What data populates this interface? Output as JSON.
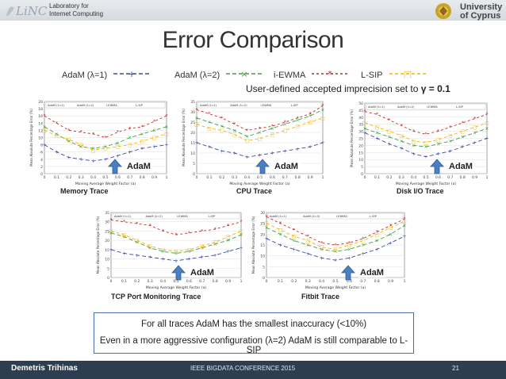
{
  "header": {
    "lab_line1": "Laboratory for",
    "lab_line2": "Internet Computing",
    "logo_text": "LiNC",
    "uni_line1": "University",
    "uni_line2": "of Cyprus"
  },
  "title": "Error Comparison",
  "legend": [
    {
      "label": "AdaM (λ=1)",
      "color": "#3949ab"
    },
    {
      "label": "AdaM (λ=2)",
      "color": "#43a047"
    },
    {
      "label": "i-EWMA",
      "color": "#c62828"
    },
    {
      "label": "L-SIP",
      "color": "#f4b400"
    }
  ],
  "subtitle_prefix": "User-defined accepted imprecision set to ",
  "subtitle_value": "γ = 0.1",
  "charts": [
    {
      "label": "Memory Trace",
      "adam": "AdaM"
    },
    {
      "label": "CPU Trace",
      "adam": "AdaM"
    },
    {
      "label": "Disk I/O Trace",
      "adam": "AdaM"
    },
    {
      "label": "TCP Port Monitoring Trace",
      "adam": "AdaM"
    },
    {
      "label": "Fitbit Trace",
      "adam": "AdaM"
    }
  ],
  "chart_data": [
    {
      "type": "line",
      "title": "Memory Trace",
      "xlabel": "Moving Average Weight Factor (a)",
      "ylabel": "Mean Absolute Percentage Error (%)",
      "ylim": [
        0,
        20
      ],
      "yticks": [
        0,
        2,
        4,
        6,
        8,
        10,
        12,
        14,
        16,
        18,
        20
      ],
      "x": [
        0,
        0.1,
        0.2,
        0.3,
        0.4,
        0.5,
        0.6,
        0.7,
        0.8,
        0.9,
        1
      ],
      "xticks": [
        0,
        0.1,
        0.2,
        0.3,
        0.4,
        0.5,
        0.6,
        0.7,
        0.8,
        0.9,
        1
      ],
      "series": [
        {
          "name": "AdaM (λ=1)",
          "values": [
            8,
            6,
            4.5,
            4,
            3.5,
            4,
            5,
            6,
            7,
            7.5,
            8
          ]
        },
        {
          "name": "AdaM (λ=2)",
          "values": [
            13,
            11,
            9,
            7.5,
            7,
            7.5,
            8.5,
            10,
            11,
            12,
            13
          ]
        },
        {
          "name": "i-EWMA",
          "values": [
            16,
            14,
            12,
            11.5,
            11,
            10,
            11.5,
            12.5,
            13,
            14.5,
            16
          ]
        },
        {
          "name": "L-SIP",
          "values": [
            12,
            10.5,
            9.5,
            8,
            6.5,
            7,
            7.5,
            8,
            9,
            10,
            11
          ]
        }
      ]
    },
    {
      "type": "line",
      "title": "CPU Trace",
      "xlabel": "Moving Average Weight Factor (a)",
      "ylabel": "Mean Absolute Percentage Error (%)",
      "ylim": [
        0,
        35
      ],
      "yticks": [
        0,
        5,
        10,
        15,
        20,
        25,
        30,
        35
      ],
      "x": [
        0,
        0.1,
        0.2,
        0.3,
        0.4,
        0.5,
        0.6,
        0.7,
        0.8,
        0.9,
        1
      ],
      "xticks": [
        0,
        0.1,
        0.2,
        0.3,
        0.4,
        0.5,
        0.6,
        0.7,
        0.8,
        0.9,
        1
      ],
      "series": [
        {
          "name": "AdaM (λ=1)",
          "values": [
            15,
            13,
            11,
            10,
            8,
            9,
            10,
            11,
            12,
            13,
            15
          ]
        },
        {
          "name": "AdaM (λ=2)",
          "values": [
            27,
            25,
            23,
            21,
            18,
            20,
            22,
            24,
            26,
            28,
            31
          ]
        },
        {
          "name": "i-EWMA",
          "values": [
            31,
            29,
            27,
            24,
            21,
            22,
            23,
            25,
            27,
            29,
            33
          ]
        },
        {
          "name": "L-SIP",
          "values": [
            24,
            22,
            21,
            19,
            16,
            17,
            19,
            21,
            23,
            25,
            27
          ]
        }
      ]
    },
    {
      "type": "line",
      "title": "Disk I/O Trace",
      "xlabel": "Moving Average Weight Factor (a)",
      "ylabel": "Mean Absolute Percentage Error (%)",
      "ylim": [
        0,
        50
      ],
      "yticks": [
        0,
        5,
        10,
        15,
        20,
        25,
        30,
        35,
        40,
        45,
        50
      ],
      "x": [
        0,
        0.1,
        0.2,
        0.3,
        0.4,
        0.5,
        0.6,
        0.7,
        0.8,
        0.9,
        1
      ],
      "xticks": [
        0,
        0.1,
        0.2,
        0.3,
        0.4,
        0.5,
        0.6,
        0.7,
        0.8,
        0.9,
        1
      ],
      "series": [
        {
          "name": "AdaM (λ=1)",
          "values": [
            29,
            25,
            21,
            18,
            14,
            12,
            14,
            16,
            19,
            22,
            25
          ]
        },
        {
          "name": "AdaM (λ=2)",
          "values": [
            32,
            29,
            26,
            23,
            20,
            19,
            21,
            23,
            26,
            29,
            32
          ]
        },
        {
          "name": "i-EWMA",
          "values": [
            44,
            42,
            38,
            34,
            30,
            28,
            30,
            33,
            36,
            39,
            42
          ]
        },
        {
          "name": "L-SIP",
          "values": [
            36,
            33,
            30,
            27,
            23,
            22,
            24,
            27,
            30,
            33,
            36
          ]
        }
      ]
    },
    {
      "type": "line",
      "title": "TCP Port Monitoring Trace",
      "xlabel": "Moving Average Weight Factor (a)",
      "ylabel": "Mean Absolute Percentage Error (%)",
      "ylim": [
        0,
        35
      ],
      "yticks": [
        0,
        5,
        10,
        15,
        20,
        25,
        30,
        35
      ],
      "x": [
        0,
        0.1,
        0.2,
        0.3,
        0.4,
        0.5,
        0.6,
        0.7,
        0.8,
        0.9,
        1
      ],
      "xticks": [
        0,
        0.1,
        0.2,
        0.3,
        0.4,
        0.5,
        0.6,
        0.7,
        0.8,
        0.9,
        1
      ],
      "series": [
        {
          "name": "AdaM (λ=1)",
          "values": [
            15,
            13,
            12,
            11,
            10,
            9,
            10,
            11,
            12,
            14,
            16
          ]
        },
        {
          "name": "AdaM (λ=2)",
          "values": [
            24,
            22,
            19,
            16,
            14,
            13,
            14,
            16,
            18,
            20,
            23
          ]
        },
        {
          "name": "i-EWMA",
          "values": [
            31,
            30,
            29,
            28,
            25,
            23,
            24,
            25,
            26,
            28,
            30
          ]
        },
        {
          "name": "L-SIP",
          "values": [
            25,
            23,
            20,
            17,
            15,
            14,
            15,
            17,
            19,
            22,
            25
          ]
        }
      ]
    },
    {
      "type": "line",
      "title": "Fitbit Trace",
      "xlabel": "Moving Average Weight Factor (a)",
      "ylabel": "Mean Absolute Percentage Error (%)",
      "ylim": [
        0,
        30
      ],
      "yticks": [
        0,
        5,
        10,
        15,
        20,
        25,
        30
      ],
      "x": [
        0,
        0.1,
        0.2,
        0.3,
        0.4,
        0.5,
        0.6,
        0.7,
        0.8,
        0.9,
        1
      ],
      "xticks": [
        0,
        0.1,
        0.2,
        0.3,
        0.4,
        0.5,
        0.6,
        0.7,
        0.8,
        0.9,
        1
      ],
      "series": [
        {
          "name": "AdaM (λ=1)",
          "values": [
            18,
            15,
            13,
            11,
            9,
            8,
            9,
            11,
            13,
            16,
            19
          ]
        },
        {
          "name": "AdaM (λ=2)",
          "values": [
            23,
            20,
            17,
            15,
            13,
            12,
            13,
            15,
            17,
            20,
            24
          ]
        },
        {
          "name": "i-EWMA",
          "values": [
            28,
            25,
            22,
            19,
            16,
            15,
            16,
            18,
            21,
            24,
            27
          ]
        },
        {
          "name": "L-SIP",
          "values": [
            25,
            22,
            19,
            17,
            14,
            13,
            15,
            17,
            20,
            23,
            26
          ]
        }
      ]
    }
  ],
  "notes": [
    "For all traces AdaM has the smallest inaccuracy (<10%)",
    "Even in a more aggressive configuration (λ=2) AdaM is still comparable to L-SIP"
  ],
  "footer": {
    "author": "Demetris Trihinas",
    "conference": "IEEE BIGDATA CONFERENCE 2015",
    "page": "21"
  }
}
